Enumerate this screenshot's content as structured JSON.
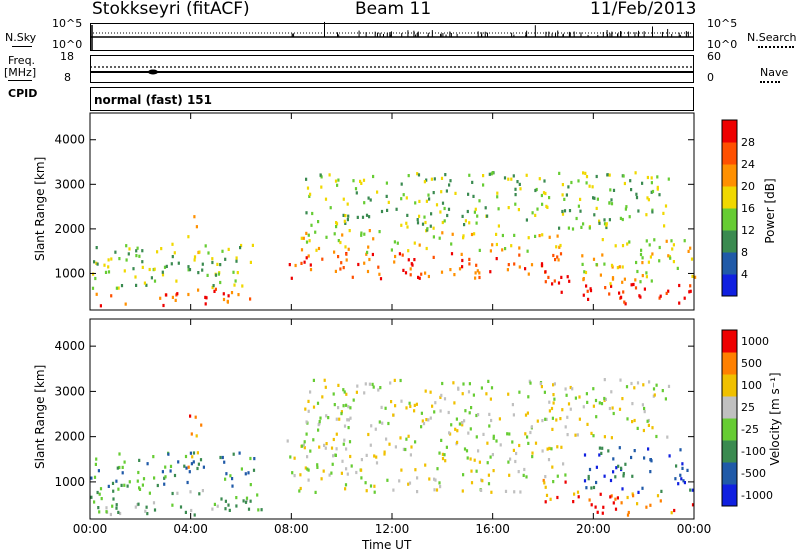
{
  "header": {
    "station": "Stokkseyri (fitACF)",
    "beam": "Beam 11",
    "date": "11/Feb/2013"
  },
  "left_labels": {
    "nsky": "N.Sky",
    "freq": "Freq.",
    "freq_unit": "[MHz]",
    "cpid": "CPID"
  },
  "right_labels": {
    "nsearch": "N.Search",
    "nave": "Nave"
  },
  "noise_panel": {
    "left_ticks": [
      "10^5",
      "10^0"
    ],
    "right_ticks": [
      "10^5",
      "10^0"
    ]
  },
  "freq_panel": {
    "left_ticks": [
      "18",
      "8"
    ],
    "right_ticks": [
      "60",
      "0"
    ]
  },
  "cpid_text": "normal (fast) 151",
  "chart_data": [
    {
      "type": "heatmap",
      "name": "Power",
      "ylabel": "Slant Range [km]",
      "yticks": [
        "4000",
        "3000",
        "2000",
        "1000"
      ],
      "ylim": [
        180,
        4600
      ],
      "xlim": [
        0,
        24
      ],
      "xticks": [
        "00:00",
        "04:00",
        "08:00",
        "12:00",
        "16:00",
        "20:00",
        "00:00"
      ],
      "xlabel": "Time UT",
      "colorbar_label": "Power [dB]",
      "colorbar_ticks": [
        "28",
        "24",
        "20",
        "16",
        "12",
        "8",
        "4"
      ],
      "colors": [
        "#1020e0",
        "#205aa8",
        "#3a8a50",
        "#66cc33",
        "#f0d800",
        "#ff9000",
        "#ff5000",
        "#ee0000"
      ],
      "echo_regions": [
        {
          "t0": 0.0,
          "t1": 6.8,
          "r0": 300,
          "r1": 700,
          "level": 6
        },
        {
          "t0": 0.0,
          "t1": 6.5,
          "r0": 700,
          "r1": 1700,
          "level": 3
        },
        {
          "t0": 3.8,
          "t1": 4.4,
          "r0": 1300,
          "r1": 2500,
          "level": 4
        },
        {
          "t0": 7.8,
          "t1": 19.0,
          "r0": 900,
          "r1": 1500,
          "level": 6
        },
        {
          "t0": 8.2,
          "t1": 18.8,
          "r0": 1500,
          "r1": 2000,
          "level": 4
        },
        {
          "t0": 8.5,
          "t1": 23.0,
          "r0": 2000,
          "r1": 3300,
          "level": 3
        },
        {
          "t0": 17.8,
          "t1": 19.2,
          "r0": 600,
          "r1": 1000,
          "level": 7
        },
        {
          "t0": 19.5,
          "t1": 24.0,
          "r0": 300,
          "r1": 800,
          "level": 7
        },
        {
          "t0": 19.5,
          "t1": 24.0,
          "r0": 800,
          "r1": 1800,
          "level": 4
        }
      ]
    },
    {
      "type": "heatmap",
      "name": "Velocity",
      "ylabel": "Slant Range [km]",
      "yticks": [
        "4000",
        "3000",
        "2000",
        "1000"
      ],
      "ylim": [
        180,
        4600
      ],
      "xlim": [
        0,
        24
      ],
      "xticks": [
        "00:00",
        "04:00",
        "08:00",
        "12:00",
        "16:00",
        "20:00",
        "00:00"
      ],
      "xlabel": "Time UT",
      "colorbar_label": "Velocity [m s⁻¹]",
      "colorbar_ticks": [
        "1000",
        "500",
        "100",
        "25",
        "-25",
        "-100",
        "-500",
        "-1000"
      ],
      "colors": [
        "#1020e0",
        "#205aa8",
        "#3a8a50",
        "#66cc33",
        "#c0c0c0",
        "#f0c000",
        "#ff8000",
        "#ee0000"
      ],
      "echo_regions": [
        {
          "t0": 0.0,
          "t1": 6.8,
          "r0": 300,
          "r1": 900,
          "level": 3
        },
        {
          "t0": 0.0,
          "t1": 6.5,
          "r0": 900,
          "r1": 1700,
          "level": 2
        },
        {
          "t0": 3.8,
          "t1": 4.4,
          "r0": 1300,
          "r1": 2500,
          "level": 6
        },
        {
          "t0": 7.8,
          "t1": 19.0,
          "r0": 800,
          "r1": 2000,
          "level": 4
        },
        {
          "t0": 8.5,
          "t1": 23.0,
          "r0": 2000,
          "r1": 3300,
          "level": 4
        },
        {
          "t0": 17.8,
          "t1": 19.4,
          "r0": 500,
          "r1": 1100,
          "level": 6
        },
        {
          "t0": 19.6,
          "t1": 24.0,
          "r0": 300,
          "r1": 800,
          "level": 6
        },
        {
          "t0": 19.6,
          "t1": 24.0,
          "r0": 800,
          "r1": 1800,
          "level": 1
        }
      ]
    }
  ]
}
